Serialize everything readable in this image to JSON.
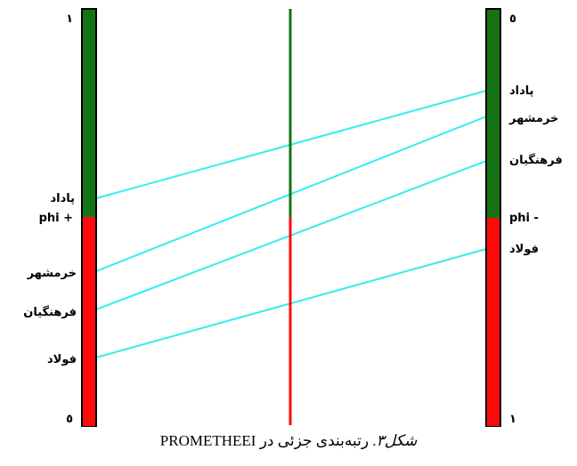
{
  "colors": {
    "top_segment": "#157315",
    "bottom_segment": "#ff0a0a",
    "connector": "#33eeee",
    "outline": "#000000"
  },
  "left_bar": {
    "top_label": "١",
    "bottom_label": "٥",
    "split_label": "phi +",
    "items": [
      "پاداد",
      "خرمشهر",
      "فرهنگیان",
      "فولاد"
    ]
  },
  "right_bar": {
    "top_label": "٥",
    "bottom_label": "١",
    "split_label": "phi -",
    "items": [
      "پاداد",
      "خرمشهر",
      "فرهنگیان",
      "فولاد"
    ]
  },
  "caption": {
    "prefix_italic": "شکل۳",
    "text": ". رتبه‌بندی جزئی در PROMETHEEI"
  }
}
